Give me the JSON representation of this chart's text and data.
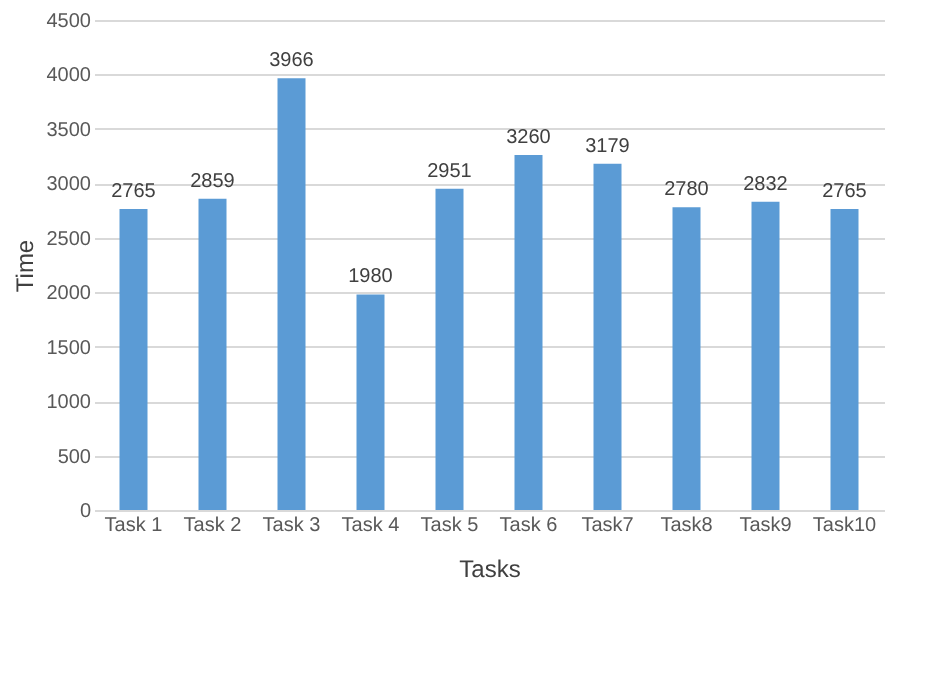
{
  "chart_data": {
    "type": "bar",
    "xlabel": "Tasks",
    "ylabel": "Time",
    "categories": [
      "Task 1",
      "Task 2",
      "Task 3",
      "Task 4",
      "Task 5",
      "Task 6",
      "Task7",
      "Task8",
      "Task9",
      "Task10"
    ],
    "values": [
      2765,
      2859,
      3966,
      1980,
      2951,
      3260,
      3179,
      2780,
      2832,
      2765
    ],
    "color": "#5b9bd5",
    "ylim": [
      0,
      4500
    ],
    "yticks": [
      0,
      500,
      1000,
      1500,
      2000,
      2500,
      3000,
      3500,
      4000,
      4500
    ],
    "grid": "y",
    "data_labels": true
  }
}
